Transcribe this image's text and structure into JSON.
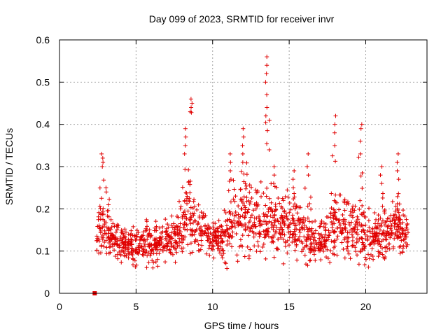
{
  "chart_data": {
    "type": "scatter",
    "title": "Day 099 of 2023, SRMTID for receiver invr",
    "xlabel": "GPS time / hours",
    "ylabel": "SRMTID / TECUs",
    "xlim": [
      0,
      24
    ],
    "ylim": [
      0,
      0.6
    ],
    "x_ticks": [
      0,
      5,
      10,
      15,
      20
    ],
    "y_ticks": [
      0,
      0.1,
      0.2,
      0.3,
      0.4,
      0.5,
      0.6
    ],
    "x_tick_labels": [
      "0",
      "5",
      "10",
      "15",
      "20"
    ],
    "y_tick_labels": [
      "0",
      "0.1",
      "0.2",
      "0.3",
      "0.4",
      "0.5",
      "0.6"
    ],
    "grid": true,
    "marker": "plus",
    "series": [
      {
        "name": "SRMTID",
        "color": "#e00000",
        "envelope": [
          {
            "x": 2.4,
            "lo": 0.08,
            "hi": 0.19
          },
          {
            "x": 2.8,
            "lo": 0.08,
            "hi": 0.24
          },
          {
            "x": 3.5,
            "lo": 0.08,
            "hi": 0.18
          },
          {
            "x": 4.5,
            "lo": 0.06,
            "hi": 0.16
          },
          {
            "x": 5.5,
            "lo": 0.06,
            "hi": 0.18
          },
          {
            "x": 6.5,
            "lo": 0.06,
            "hi": 0.17
          },
          {
            "x": 7.5,
            "lo": 0.07,
            "hi": 0.19
          },
          {
            "x": 8.3,
            "lo": 0.08,
            "hi": 0.28
          },
          {
            "x": 9.0,
            "lo": 0.09,
            "hi": 0.24
          },
          {
            "x": 10.0,
            "lo": 0.07,
            "hi": 0.18
          },
          {
            "x": 11.0,
            "lo": 0.06,
            "hi": 0.21
          },
          {
            "x": 12.0,
            "lo": 0.07,
            "hi": 0.3
          },
          {
            "x": 13.0,
            "lo": 0.07,
            "hi": 0.27
          },
          {
            "x": 14.0,
            "lo": 0.07,
            "hi": 0.24
          },
          {
            "x": 15.0,
            "lo": 0.08,
            "hi": 0.26
          },
          {
            "x": 16.0,
            "lo": 0.06,
            "hi": 0.22
          },
          {
            "x": 17.0,
            "lo": 0.06,
            "hi": 0.18
          },
          {
            "x": 18.0,
            "lo": 0.07,
            "hi": 0.26
          },
          {
            "x": 19.0,
            "lo": 0.07,
            "hi": 0.24
          },
          {
            "x": 20.0,
            "lo": 0.05,
            "hi": 0.21
          },
          {
            "x": 21.0,
            "lo": 0.07,
            "hi": 0.2
          },
          {
            "x": 22.0,
            "lo": 0.07,
            "hi": 0.24
          },
          {
            "x": 22.8,
            "lo": 0.08,
            "hi": 0.22
          }
        ],
        "spikes": [
          {
            "x": 2.8,
            "y": [
              0.3,
              0.31,
              0.32,
              0.33
            ]
          },
          {
            "x": 3.05,
            "y": [
              0.24,
              0.25
            ]
          },
          {
            "x": 8.2,
            "y": [
              0.33,
              0.35,
              0.37,
              0.39
            ]
          },
          {
            "x": 8.6,
            "y": [
              0.43,
              0.44,
              0.45,
              0.46
            ]
          },
          {
            "x": 11.2,
            "y": [
              0.27,
              0.29,
              0.31,
              0.33
            ]
          },
          {
            "x": 12.0,
            "y": [
              0.33,
              0.35,
              0.37,
              0.39
            ]
          },
          {
            "x": 13.5,
            "y": [
              0.42,
              0.44,
              0.47,
              0.5,
              0.52,
              0.54,
              0.56
            ]
          },
          {
            "x": 14.0,
            "y": [
              0.26,
              0.28,
              0.3
            ]
          },
          {
            "x": 15.3,
            "y": [
              0.25,
              0.27,
              0.29
            ]
          },
          {
            "x": 16.2,
            "y": [
              0.28,
              0.3,
              0.33
            ]
          },
          {
            "x": 18.0,
            "y": [
              0.35,
              0.38,
              0.4,
              0.42
            ]
          },
          {
            "x": 19.7,
            "y": [
              0.33,
              0.36,
              0.39,
              0.4
            ]
          },
          {
            "x": 21.0,
            "y": [
              0.26,
              0.28,
              0.3
            ]
          },
          {
            "x": 22.1,
            "y": [
              0.27,
              0.29,
              0.31,
              0.33
            ]
          }
        ],
        "special_point": {
          "x": 2.3,
          "y": 0.0
        }
      }
    ]
  }
}
